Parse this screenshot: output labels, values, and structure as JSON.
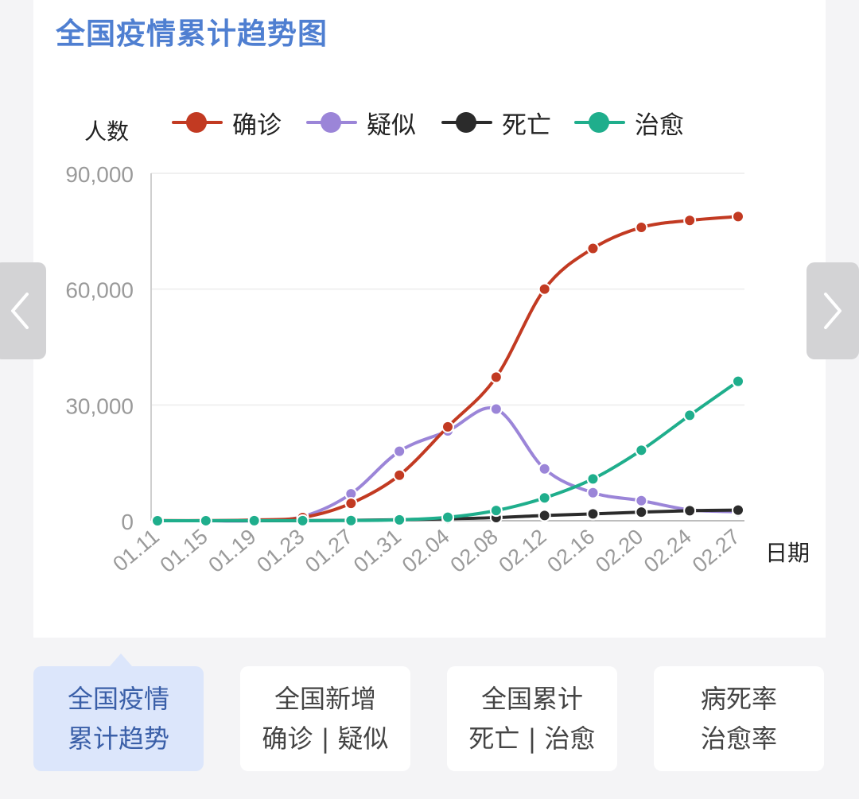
{
  "title": "全国疫情累计趋势图",
  "chart_data": {
    "type": "line",
    "title": "全国疫情累计趋势图",
    "ylabel": "人数",
    "xlabel": "日期",
    "ylim": [
      0,
      90000
    ],
    "yticks": [
      "0",
      "30,000",
      "60,000",
      "90,000"
    ],
    "ytick_values": [
      0,
      30000,
      60000,
      90000
    ],
    "xticks": [
      "01.11",
      "01.15",
      "01.19",
      "01.23",
      "01.27",
      "01.31",
      "02.04",
      "02.08",
      "02.12",
      "02.16",
      "02.20",
      "02.24",
      "02.27"
    ],
    "grid": true,
    "legend_position": "top",
    "series": [
      {
        "name": "确诊",
        "color": "#c23a22",
        "x": [
          "01.11",
          "01.15",
          "01.19",
          "01.23",
          "01.27",
          "01.31",
          "02.04",
          "02.08",
          "02.12",
          "02.16",
          "02.20",
          "02.24",
          "02.27"
        ],
        "values": [
          41,
          41,
          198,
          830,
          4515,
          11791,
          24324,
          37198,
          60000,
          70548,
          75990,
          77800,
          78800
        ]
      },
      {
        "name": "疑似",
        "color": "#9b85d8",
        "x": [
          "01.11",
          "01.15",
          "01.19",
          "01.23",
          "01.27",
          "01.31",
          "02.04",
          "02.08",
          "02.12",
          "02.16",
          "02.20",
          "02.24",
          "02.27"
        ],
        "values": [
          0,
          0,
          0,
          1072,
          6973,
          17988,
          23260,
          28942,
          13435,
          7264,
          5206,
          2824,
          2308
        ]
      },
      {
        "name": "死亡",
        "color": "#2b2b2b",
        "x": [
          "01.11",
          "01.15",
          "01.19",
          "01.23",
          "01.27",
          "01.31",
          "02.04",
          "02.08",
          "02.12",
          "02.16",
          "02.20",
          "02.24",
          "02.27"
        ],
        "values": [
          1,
          2,
          3,
          25,
          106,
          259,
          492,
          811,
          1369,
          1770,
          2236,
          2595,
          2747
        ]
      },
      {
        "name": "治愈",
        "color": "#1fae8c",
        "x": [
          "01.11",
          "01.15",
          "01.19",
          "01.23",
          "01.27",
          "01.31",
          "02.04",
          "02.08",
          "02.12",
          "02.16",
          "02.20",
          "02.24",
          "02.27"
        ],
        "values": [
          0,
          12,
          25,
          34,
          60,
          243,
          892,
          2649,
          5911,
          10844,
          18264,
          27323,
          36117
        ]
      }
    ]
  },
  "tabs": [
    {
      "line1": "全国疫情",
      "line2": "累计趋势",
      "active": true
    },
    {
      "line1": "全国新增",
      "line2": "确诊 | 疑似",
      "active": false
    },
    {
      "line1": "全国累计",
      "line2": "死亡 | 治愈",
      "active": false
    },
    {
      "line1": "病死率",
      "line2": "治愈率",
      "active": false
    }
  ]
}
